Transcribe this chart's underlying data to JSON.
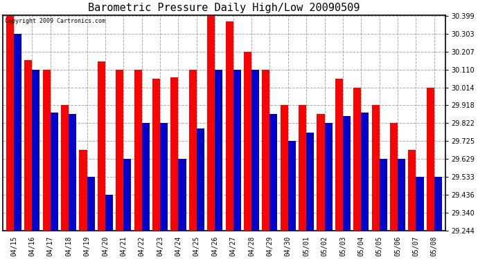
{
  "title": "Barometric Pressure Daily High/Low 20090509",
  "copyright_text": "Copyright 2009 Cartronics.com",
  "categories": [
    "04/15",
    "04/16",
    "04/17",
    "04/18",
    "04/19",
    "04/20",
    "04/21",
    "04/22",
    "04/23",
    "04/24",
    "04/25",
    "04/26",
    "04/27",
    "04/28",
    "04/29",
    "04/30",
    "05/01",
    "05/02",
    "05/03",
    "05/04",
    "05/05",
    "05/06",
    "05/07",
    "05/08"
  ],
  "highs": [
    30.399,
    30.16,
    30.11,
    29.918,
    29.68,
    30.155,
    30.11,
    30.11,
    30.06,
    30.07,
    30.11,
    30.399,
    30.37,
    30.207,
    30.11,
    29.918,
    29.918,
    29.87,
    30.06,
    30.014,
    29.918,
    29.822,
    29.68,
    30.014
  ],
  "lows": [
    30.303,
    30.11,
    29.88,
    29.87,
    29.533,
    29.436,
    29.629,
    29.822,
    29.822,
    29.629,
    29.792,
    30.11,
    30.11,
    30.11,
    29.87,
    29.725,
    29.77,
    29.822,
    29.86,
    29.88,
    29.629,
    29.629,
    29.533,
    29.533
  ],
  "high_color": "#ff0000",
  "low_color": "#0000cc",
  "background_color": "#ffffff",
  "grid_color": "#aaaaaa",
  "yticks": [
    29.244,
    29.34,
    29.436,
    29.533,
    29.629,
    29.725,
    29.822,
    29.918,
    30.014,
    30.11,
    30.207,
    30.303,
    30.399
  ],
  "ymin": 29.244,
  "ymax": 30.399,
  "title_fontsize": 11,
  "tick_fontsize": 7,
  "bar_width": 0.42
}
